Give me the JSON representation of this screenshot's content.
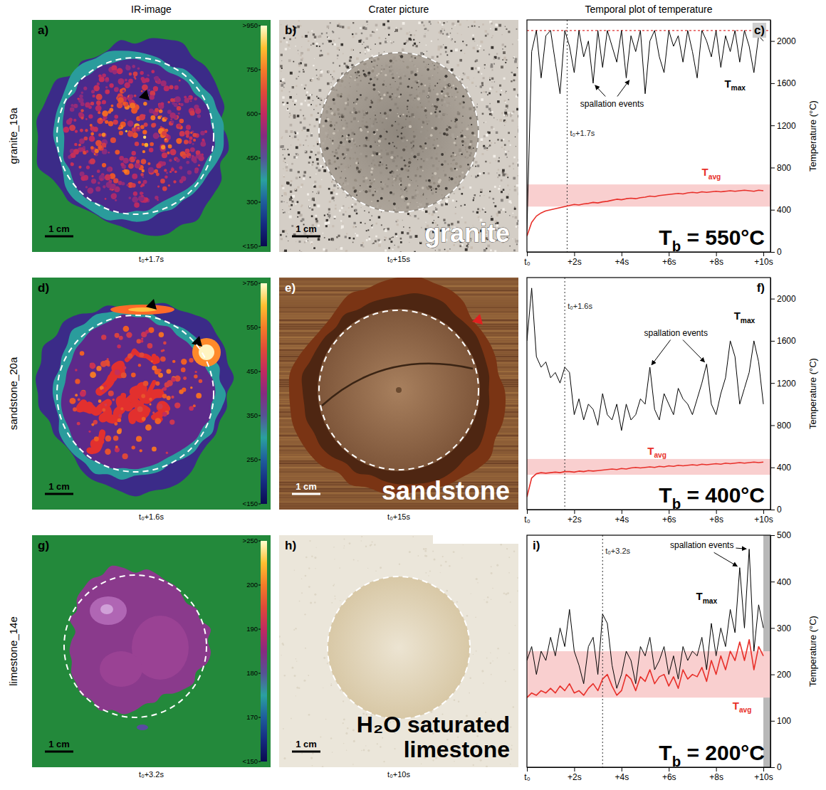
{
  "header": {
    "columns": [
      "IR-image",
      "Crater picture",
      "Temporal plot of temperature"
    ]
  },
  "rows": [
    {
      "name": "granite_19a",
      "ir_image": {
        "letter": "a)",
        "time": "t₀+1.7s",
        "scale_bar": "1 cm",
        "colorbar": {
          "range": [
            150,
            950
          ],
          "ticks": [
            {
              "value": 950,
              "label": ">950"
            },
            750,
            600,
            450,
            300,
            {
              "value": 150,
              "label": "<150"
            }
          ]
        }
      },
      "crater_picture": {
        "letter": "b)",
        "time": "t₀+15s",
        "scale_bar": "1 cm",
        "label": "granite"
      }
    },
    {
      "name": "sandstone_20a",
      "ir_image": {
        "letter": "d)",
        "time": "t₀+1.6s",
        "scale_bar": "1 cm",
        "colorbar": {
          "range": [
            150,
            750
          ],
          "ticks": [
            {
              "value": 750,
              "label": ">750"
            },
            550,
            450,
            350,
            250,
            {
              "value": 150,
              "label": "<150"
            }
          ]
        }
      },
      "crater_picture": {
        "letter": "e)",
        "time": "t₀+15s",
        "scale_bar": "1 cm",
        "label": "sandstone"
      }
    },
    {
      "name": "limestone_14e",
      "ir_image": {
        "letter": "g)",
        "time": "t₀+3.2s",
        "scale_bar": "1 cm",
        "colorbar": {
          "range": [
            150,
            250
          ],
          "ticks": [
            {
              "value": 250,
              "label": ">250"
            },
            200,
            190,
            180,
            170,
            {
              "value": 150,
              "label": "<150"
            }
          ]
        }
      },
      "crater_picture": {
        "letter": "h)",
        "time": "t₀+10s",
        "scale_bar": "1 cm",
        "label": "H₂O saturated limestone"
      }
    }
  ],
  "chart_data": [
    {
      "type": "line",
      "letter": "c)",
      "ylabel": "Temperature (°C)",
      "x": [
        0,
        0.2,
        0.4,
        0.6,
        0.8,
        1,
        1.2,
        1.4,
        1.6,
        1.8,
        2,
        2.2,
        2.4,
        2.6,
        2.8,
        3,
        3.2,
        3.4,
        3.6,
        3.8,
        4,
        4.2,
        4.4,
        4.6,
        4.8,
        5,
        5.2,
        5.4,
        5.6,
        5.8,
        6,
        6.2,
        6.4,
        6.6,
        6.8,
        7,
        7.2,
        7.4,
        7.6,
        7.8,
        8,
        8.2,
        8.4,
        8.6,
        8.8,
        9,
        9.2,
        9.4,
        9.6,
        9.8,
        10
      ],
      "xlim": [
        0,
        10.3
      ],
      "xticks": [
        {
          "value": 0,
          "label": "t₀"
        },
        {
          "value": 2,
          "label": "+2s"
        },
        {
          "value": 4,
          "label": "+4s"
        },
        {
          "value": 6,
          "label": "+6s"
        },
        {
          "value": 8,
          "label": "+8s"
        },
        {
          "value": 10,
          "label": "+10s"
        }
      ],
      "ylim": [
        0,
        2200
      ],
      "yticks": [
        0,
        400,
        800,
        1200,
        1600,
        2000
      ],
      "series": [
        {
          "name": "Tmax",
          "color": "#000000",
          "label_at": [
            8.8,
            1560
          ],
          "values": [
            200,
            1900,
            2100,
            1650,
            2050,
            2100,
            1800,
            1500,
            2100,
            1950,
            1700,
            2100,
            1850,
            2000,
            1600,
            2100,
            1750,
            2100,
            1950,
            1800,
            2100,
            1650,
            2050,
            1900,
            2100,
            1500,
            2000,
            2100,
            1850,
            1700,
            2100,
            1950,
            2050,
            1800,
            2100,
            1900,
            1650,
            2100,
            2000,
            1850,
            2100,
            1750,
            2050,
            1900,
            2100,
            1800,
            2100,
            1950,
            1700,
            2050,
            2000
          ]
        },
        {
          "name": "Tavg",
          "color": "#e8302a",
          "label_at": [
            7.8,
            720
          ],
          "values": [
            150,
            280,
            340,
            370,
            390,
            400,
            410,
            420,
            430,
            440,
            450,
            445,
            455,
            460,
            470,
            465,
            475,
            480,
            490,
            500,
            495,
            505,
            510,
            505,
            515,
            520,
            530,
            525,
            535,
            540,
            545,
            550,
            555,
            550,
            560,
            565,
            560,
            570,
            565,
            570,
            575,
            570,
            575,
            580,
            575,
            580,
            585,
            580,
            575,
            585,
            580
          ]
        }
      ],
      "band": [
        430,
        640
      ],
      "hline": 2100,
      "vline": {
        "x": 1.7,
        "label": "t₀+1.7s",
        "label_y": 1100
      },
      "annotation": {
        "text": "spallation events",
        "at": [
          3.6,
          1380
        ],
        "points": [
          [
            2.8,
            1600
          ],
          [
            4.4,
            1650
          ]
        ]
      },
      "tb": "Tb = 550°C"
    },
    {
      "type": "line",
      "letter": "f)",
      "ylabel": "Temperature (°C)",
      "x": [
        0,
        0.2,
        0.4,
        0.6,
        0.8,
        1,
        1.2,
        1.4,
        1.6,
        1.8,
        2,
        2.2,
        2.4,
        2.6,
        2.8,
        3,
        3.2,
        3.4,
        3.6,
        3.8,
        4,
        4.2,
        4.4,
        4.6,
        4.8,
        5,
        5.2,
        5.4,
        5.6,
        5.8,
        6,
        6.2,
        6.4,
        6.6,
        6.8,
        7,
        7.2,
        7.4,
        7.6,
        7.8,
        8,
        8.2,
        8.4,
        8.6,
        8.8,
        9,
        9.2,
        9.4,
        9.6,
        9.8,
        10
      ],
      "xlim": [
        0,
        10.3
      ],
      "xticks": [
        {
          "value": 0,
          "label": "t₀"
        },
        {
          "value": 2,
          "label": "+2s"
        },
        {
          "value": 4,
          "label": "+4s"
        },
        {
          "value": 6,
          "label": "+6s"
        },
        {
          "value": 8,
          "label": "+8s"
        },
        {
          "value": 10,
          "label": "+10s"
        }
      ],
      "ylim": [
        0,
        2200
      ],
      "yticks": [
        0,
        400,
        800,
        1200,
        1600,
        2000
      ],
      "series": [
        {
          "name": "Tmax",
          "color": "#000000",
          "label_at": [
            9.2,
            1800
          ],
          "values": [
            1600,
            2100,
            1450,
            1350,
            1400,
            1250,
            1300,
            1200,
            1350,
            1300,
            900,
            1050,
            850,
            1000,
            950,
            800,
            1100,
            900,
            850,
            1000,
            750,
            1000,
            850,
            900,
            1050,
            1000,
            1350,
            950,
            850,
            1100,
            1000,
            900,
            1150,
            1050,
            1000,
            900,
            1050,
            1200,
            1380,
            1000,
            900,
            1100,
            1250,
            1600,
            1450,
            1000,
            1150,
            1300,
            1600,
            1400,
            1000
          ]
        },
        {
          "name": "Tavg",
          "color": "#e8302a",
          "label_at": [
            5.5,
            520
          ],
          "values": [
            120,
            300,
            340,
            350,
            345,
            350,
            355,
            350,
            360,
            360,
            355,
            365,
            360,
            370,
            365,
            370,
            375,
            380,
            385,
            380,
            390,
            385,
            395,
            400,
            395,
            400,
            405,
            400,
            410,
            405,
            415,
            410,
            420,
            415,
            420,
            425,
            420,
            430,
            425,
            430,
            435,
            430,
            440,
            435,
            440,
            445,
            440,
            445,
            450,
            445,
            450
          ]
        }
      ],
      "band": [
        330,
        480
      ],
      "vline": {
        "x": 1.6,
        "label": "t₀+1.6s",
        "label_y": 1900
      },
      "annotation": {
        "text": "spallation events",
        "at": [
          6.3,
          1650
        ],
        "points": [
          [
            5.2,
            1350
          ],
          [
            7.6,
            1380
          ]
        ]
      },
      "tb": "Tb = 400°C"
    },
    {
      "type": "line",
      "letter": "i)",
      "ylabel": "Temperature (°C)",
      "x": [
        0,
        0.2,
        0.4,
        0.6,
        0.8,
        1,
        1.2,
        1.4,
        1.6,
        1.8,
        2,
        2.2,
        2.4,
        2.6,
        2.8,
        3,
        3.2,
        3.4,
        3.6,
        3.8,
        4,
        4.2,
        4.4,
        4.6,
        4.8,
        5,
        5.2,
        5.4,
        5.6,
        5.8,
        6,
        6.2,
        6.4,
        6.6,
        6.8,
        7,
        7.2,
        7.4,
        7.6,
        7.8,
        8,
        8.2,
        8.4,
        8.6,
        8.8,
        9,
        9.2,
        9.4,
        9.6,
        9.8,
        10
      ],
      "xlim": [
        0,
        10.3
      ],
      "xticks": [
        {
          "value": 0,
          "label": "t₀"
        },
        {
          "value": 2,
          "label": "+2s"
        },
        {
          "value": 4,
          "label": "+4s"
        },
        {
          "value": 6,
          "label": "+6s"
        },
        {
          "value": 8,
          "label": "+8s"
        },
        {
          "value": 10,
          "label": "+10s"
        }
      ],
      "ylim": [
        0,
        500
      ],
      "yticks": [
        0,
        100,
        200,
        300,
        400,
        500
      ],
      "series": [
        {
          "name": "Tmax",
          "color": "#000000",
          "label_at": [
            7.6,
            360
          ],
          "values": [
            230,
            260,
            200,
            250,
            230,
            280,
            240,
            300,
            260,
            340,
            250,
            220,
            180,
            260,
            280,
            200,
            330,
            310,
            220,
            170,
            200,
            250,
            230,
            180,
            260,
            240,
            280,
            210,
            230,
            260,
            200,
            240,
            190,
            260,
            230,
            250,
            240,
            280,
            210,
            310,
            240,
            300,
            260,
            340,
            290,
            430,
            300,
            470,
            250,
            350,
            300
          ]
        },
        {
          "name": "Tavg",
          "color": "#e8302a",
          "label_at": [
            9.1,
            125
          ],
          "values": [
            150,
            160,
            155,
            165,
            160,
            170,
            160,
            175,
            165,
            180,
            160,
            165,
            155,
            170,
            180,
            165,
            190,
            200,
            175,
            155,
            165,
            200,
            190,
            165,
            195,
            185,
            210,
            180,
            195,
            200,
            175,
            195,
            170,
            210,
            190,
            200,
            195,
            215,
            185,
            230,
            200,
            240,
            210,
            250,
            230,
            270,
            230,
            275,
            210,
            260,
            240
          ]
        }
      ],
      "band": [
        150,
        250
      ],
      "shade": [
        10,
        10.3
      ],
      "vline": {
        "x": 3.2,
        "label": "t₀+3.2s",
        "label_y": 460
      },
      "annotation": {
        "text": "spallation events",
        "at": [
          7.4,
          472
        ],
        "points": [
          [
            9.0,
            430
          ],
          [
            9.4,
            470
          ]
        ]
      },
      "tb": "Tb = 200°C"
    }
  ]
}
